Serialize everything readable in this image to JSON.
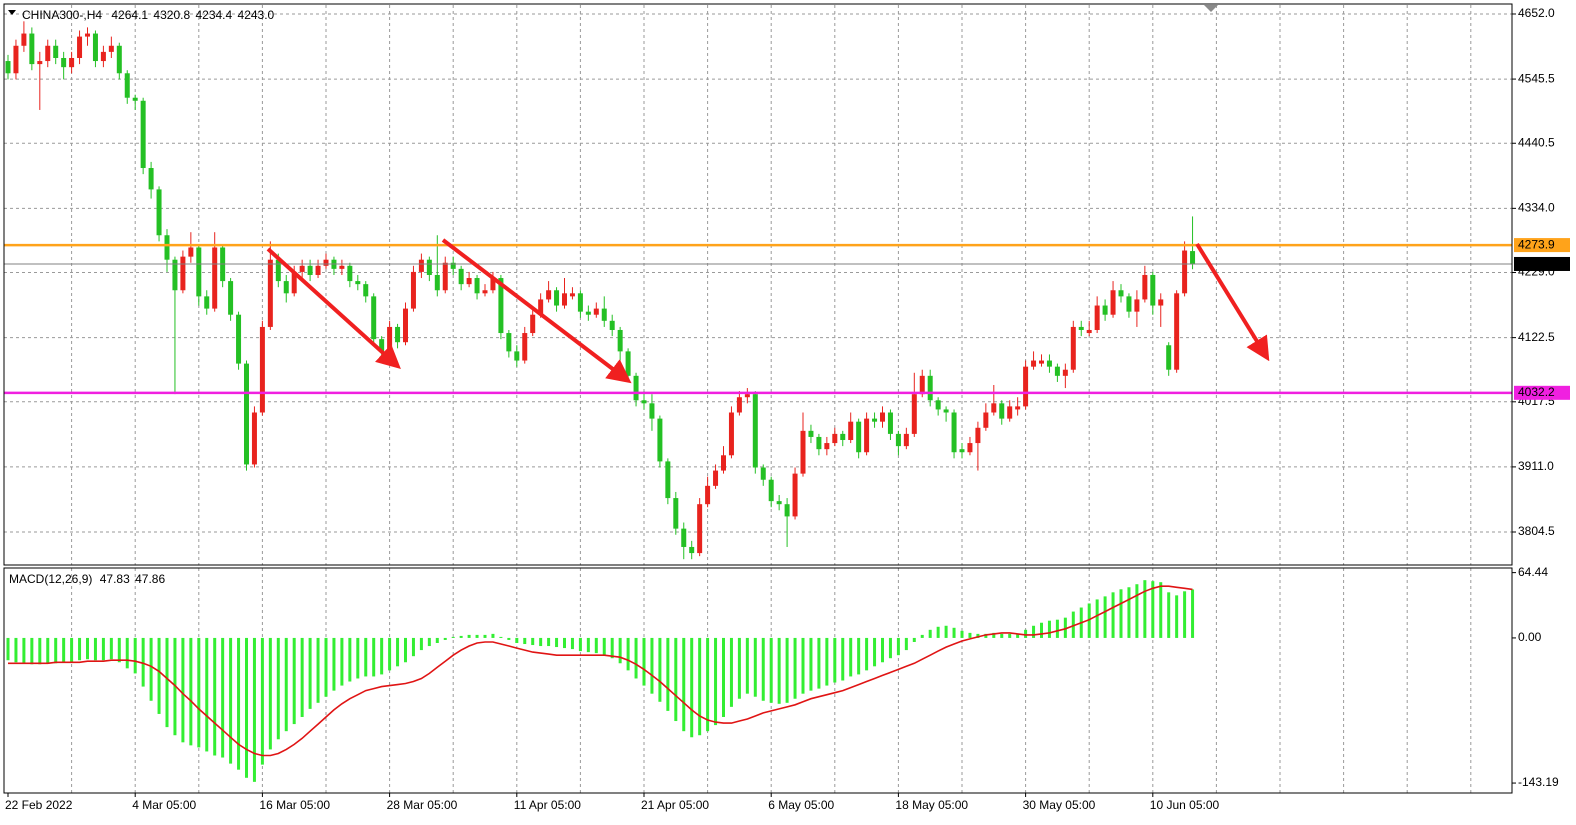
{
  "chart_data": [
    {
      "type": "candlestick",
      "title": "CHINA300-,H4",
      "ohlc_labels": [
        "4264.1",
        "4320.8",
        "4234.4",
        "4243.0"
      ],
      "categories": [
        "22 Feb 2022",
        null,
        null,
        null,
        null,
        null,
        null,
        null,
        null,
        null,
        null,
        null,
        null,
        null,
        null,
        null,
        "4 Mar 05:00",
        null,
        null,
        null,
        null,
        null,
        null,
        null,
        null,
        null,
        null,
        null,
        null,
        null,
        null,
        null,
        "16 Mar 05:00",
        null,
        null,
        null,
        null,
        null,
        null,
        null,
        null,
        null,
        null,
        null,
        null,
        null,
        null,
        null,
        "28 Mar 05:00",
        null,
        null,
        null,
        null,
        null,
        null,
        null,
        null,
        null,
        null,
        null,
        null,
        null,
        null,
        null,
        "11 Apr 05:00",
        null,
        null,
        null,
        null,
        null,
        null,
        null,
        null,
        null,
        null,
        null,
        null,
        null,
        null,
        null,
        "21 Apr 05:00",
        null,
        null,
        null,
        null,
        null,
        null,
        null,
        null,
        null,
        null,
        null,
        null,
        null,
        null,
        null,
        "6 May 05:00",
        null,
        null,
        null,
        null,
        null,
        null,
        null,
        null,
        null,
        null,
        null,
        null,
        null,
        null,
        null,
        "18 May 05:00",
        null,
        null,
        null,
        null,
        null,
        null,
        null,
        null,
        null,
        null,
        null,
        null,
        null,
        null,
        null,
        "30 May 05:00",
        null,
        null,
        null,
        null,
        null,
        null,
        null,
        null,
        null,
        null,
        null,
        null,
        null,
        null,
        null,
        "10 Jun 05:00",
        null,
        null,
        null,
        null,
        null
      ],
      "open": [
        4575,
        4555,
        4600,
        4620,
        4570,
        4575,
        4600,
        4580,
        4565,
        4580,
        4615,
        4620,
        4575,
        4590,
        4600,
        4555,
        4515,
        4510,
        4400,
        4365,
        4290,
        4250,
        4200,
        4255,
        4270,
        4190,
        4170,
        4270,
        4215,
        4160,
        4080,
        3915,
        4000,
        4140,
        4250,
        4215,
        4195,
        4230,
        4240,
        4225,
        4240,
        4250,
        4235,
        4240,
        4215,
        4210,
        4190,
        4120,
        4100,
        4140,
        4115,
        4170,
        4230,
        4250,
        4225,
        4200,
        4245,
        4235,
        4210,
        4220,
        4195,
        4200,
        4220,
        4130,
        4100,
        4085,
        4130,
        4160,
        4185,
        4200,
        4175,
        4190,
        4195,
        4165,
        4160,
        4170,
        4150,
        4135,
        4100,
        4060,
        4020,
        4015,
        3990,
        3920,
        3860,
        3810,
        3780,
        3770,
        3850,
        3880,
        3905,
        3930,
        4000,
        4025,
        4030,
        3910,
        3890,
        3855,
        3850,
        3830,
        3900,
        3970,
        3960,
        3940,
        3950,
        3965,
        3955,
        3985,
        3935,
        3990,
        3985,
        4000,
        3965,
        3945,
        3965,
        4030,
        4060,
        4020,
        4005,
        4000,
        3940,
        3935,
        3950,
        3975,
        4000,
        4015,
        3990,
        4005,
        4010,
        4075,
        4080,
        4085,
        4075,
        4060,
        4070,
        4140,
        4130,
        4135,
        4175,
        4160,
        4200,
        4190,
        4165,
        4185,
        4225,
        4175,
        4110,
        4070,
        4195,
        4264.1
      ],
      "high": [
        4585,
        4610,
        4640,
        4630,
        4590,
        4610,
        4610,
        4590,
        4590,
        4625,
        4630,
        4625,
        4600,
        4615,
        4605,
        4560,
        4520,
        4515,
        4410,
        4370,
        4300,
        4255,
        4265,
        4295,
        4275,
        4200,
        4295,
        4275,
        4220,
        4165,
        4085,
        4010,
        4150,
        4280,
        4260,
        4225,
        4240,
        4250,
        4250,
        4250,
        4260,
        4255,
        4250,
        4245,
        4225,
        4215,
        4195,
        4125,
        4150,
        4145,
        4180,
        4240,
        4260,
        4255,
        4290,
        4255,
        4255,
        4240,
        4230,
        4225,
        4210,
        4230,
        4225,
        4135,
        4110,
        4140,
        4170,
        4195,
        4215,
        4205,
        4220,
        4205,
        4200,
        4175,
        4180,
        4190,
        4160,
        4140,
        4105,
        4065,
        4035,
        4030,
        3995,
        3925,
        3870,
        3820,
        3790,
        3860,
        3895,
        3915,
        3945,
        4010,
        4035,
        4040,
        4035,
        3915,
        3895,
        3865,
        3860,
        3910,
        4000,
        3980,
        3965,
        3960,
        3975,
        3970,
        4000,
        3990,
        4000,
        4000,
        4010,
        4005,
        3970,
        3975,
        4065,
        4070,
        4070,
        4025,
        4010,
        4005,
        3950,
        3960,
        3985,
        4015,
        4045,
        4020,
        4020,
        4025,
        4085,
        4100,
        4095,
        4095,
        4080,
        4080,
        4150,
        4150,
        4150,
        4190,
        4185,
        4215,
        4210,
        4195,
        4200,
        4240,
        4230,
        4195,
        4115,
        4200,
        4280,
        4320.8
      ],
      "low": [
        4545,
        4545,
        4590,
        4560,
        4495,
        4565,
        4570,
        4545,
        4555,
        4570,
        4600,
        4565,
        4565,
        4580,
        4545,
        4505,
        4495,
        4390,
        4350,
        4280,
        4230,
        4030,
        4195,
        4245,
        4175,
        4160,
        4165,
        4205,
        4150,
        4070,
        3905,
        3910,
        3995,
        4135,
        4205,
        4180,
        4190,
        4220,
        4215,
        4220,
        4235,
        4225,
        4225,
        4205,
        4200,
        4180,
        4110,
        4085,
        4095,
        4105,
        4110,
        4165,
        4220,
        4215,
        4190,
        4195,
        4225,
        4200,
        4205,
        4185,
        4190,
        4195,
        4120,
        4090,
        4075,
        4080,
        4125,
        4155,
        4180,
        4165,
        4170,
        4185,
        4155,
        4150,
        4155,
        4140,
        4125,
        4085,
        4050,
        4010,
        4005,
        3970,
        3910,
        3850,
        3800,
        3760,
        3760,
        3765,
        3845,
        3875,
        3900,
        3925,
        3995,
        4015,
        3900,
        3880,
        3845,
        3840,
        3780,
        3825,
        3895,
        3950,
        3930,
        3930,
        3945,
        3945,
        3950,
        3925,
        3930,
        3975,
        3975,
        3955,
        3930,
        3940,
        3960,
        4025,
        4010,
        3995,
        3985,
        3925,
        3925,
        3930,
        3905,
        3970,
        3995,
        3980,
        3985,
        3995,
        4005,
        4070,
        4075,
        4065,
        4050,
        4040,
        4065,
        4125,
        4125,
        4130,
        4150,
        4155,
        4180,
        4155,
        4140,
        4180,
        4160,
        4140,
        4060,
        4065,
        4190,
        4234.4
      ],
      "close": [
        4555,
        4600,
        4620,
        4570,
        4575,
        4600,
        4580,
        4565,
        4580,
        4615,
        4620,
        4575,
        4590,
        4600,
        4555,
        4515,
        4510,
        4400,
        4365,
        4290,
        4250,
        4200,
        4255,
        4270,
        4190,
        4170,
        4270,
        4215,
        4160,
        4080,
        3915,
        4000,
        4140,
        4250,
        4215,
        4195,
        4230,
        4240,
        4225,
        4240,
        4250,
        4235,
        4240,
        4215,
        4210,
        4190,
        4120,
        4100,
        4140,
        4115,
        4170,
        4230,
        4250,
        4225,
        4200,
        4245,
        4235,
        4210,
        4220,
        4195,
        4200,
        4220,
        4130,
        4100,
        4085,
        4130,
        4160,
        4185,
        4200,
        4175,
        4195,
        4195,
        4165,
        4160,
        4170,
        4150,
        4135,
        4100,
        4060,
        4020,
        4015,
        3990,
        3920,
        3860,
        3810,
        3780,
        3770,
        3850,
        3880,
        3905,
        3930,
        4000,
        4025,
        4030,
        3910,
        3890,
        3855,
        3850,
        3830,
        3900,
        3970,
        3960,
        3940,
        3950,
        3965,
        3955,
        3985,
        3935,
        3990,
        3985,
        4000,
        3965,
        3945,
        3965,
        4030,
        4060,
        4020,
        4005,
        4000,
        3935,
        3935,
        3950,
        3975,
        4000,
        4015,
        3990,
        4010,
        4010,
        4075,
        4085,
        4085,
        4075,
        4060,
        4070,
        4140,
        4135,
        4135,
        4175,
        4160,
        4200,
        4190,
        4165,
        4185,
        4225,
        4175,
        4185,
        4070,
        4195,
        4265,
        4243.0
      ],
      "up_color": "#e8231e",
      "down_color": "#24c024",
      "last_price_color": "#808080",
      "levels": [
        {
          "value": 4273.9,
          "color": "#ffa31a"
        },
        {
          "value": 4032.2,
          "color": "#f020e0"
        }
      ],
      "ylim": [
        3750.5,
        4666.7
      ],
      "yticks": [
        {
          "value": 4652,
          "label": "4652.0"
        },
        {
          "value": 4545.5,
          "label": "4545.5"
        },
        {
          "value": 4440.5,
          "label": "4440.5"
        },
        {
          "value": 4334,
          "label": "4334.0"
        },
        {
          "value": 4229,
          "label": "4229.0"
        },
        {
          "value": 4122.5,
          "label": "4122.5"
        },
        {
          "value": 4017.5,
          "label": "4017.5"
        },
        {
          "value": 3911,
          "label": "3911.0"
        },
        {
          "value": 3804.5,
          "label": "3804.5"
        }
      ],
      "grid": true
    },
    {
      "type": "macd",
      "title": "MACD(12,26,9)",
      "series": [
        {
          "color": "#33ee33",
          "style": "histogram",
          "values": [
            -22,
            -24,
            -25,
            -26,
            -26,
            -25,
            -25,
            -24,
            -24,
            -22,
            -21,
            -22,
            -22,
            -21,
            -24,
            -30,
            -35,
            -48,
            -62,
            -75,
            -88,
            -96,
            -103,
            -106,
            -108,
            -112,
            -116,
            -118,
            -124,
            -130,
            -138,
            -142,
            -125,
            -110,
            -100,
            -92,
            -85,
            -78,
            -70,
            -64,
            -58,
            -52,
            -47,
            -43,
            -40,
            -38,
            -38,
            -36,
            -32,
            -28,
            -24,
            -18,
            -12,
            -8,
            -5,
            -2,
            1,
            2,
            3,
            3,
            3,
            4,
            1,
            -2,
            -5,
            -6,
            -7,
            -8,
            -8,
            -9,
            -10,
            -11,
            -13,
            -14,
            -15,
            -17,
            -20,
            -25,
            -32,
            -40,
            -47,
            -55,
            -63,
            -72,
            -82,
            -92,
            -98,
            -96,
            -92,
            -86,
            -78,
            -68,
            -60,
            -55,
            -58,
            -62,
            -64,
            -65,
            -64,
            -60,
            -55,
            -52,
            -50,
            -47,
            -44,
            -42,
            -38,
            -36,
            -32,
            -28,
            -24,
            -20,
            -17,
            -12,
            -4,
            3,
            8,
            11,
            12,
            10,
            7,
            5,
            4,
            4,
            5,
            4,
            4,
            4,
            8,
            12,
            15,
            17,
            18,
            20,
            26,
            30,
            34,
            38,
            41,
            45,
            48,
            50,
            53,
            57,
            56,
            55,
            45,
            42,
            46,
            47.83
          ]
        },
        {
          "color": "#e01414",
          "style": "line",
          "values": [
            -25,
            -25,
            -25,
            -25,
            -25,
            -25,
            -24,
            -24,
            -24,
            -24,
            -23,
            -23,
            -23,
            -22,
            -22,
            -22,
            -23,
            -25,
            -28,
            -33,
            -40,
            -47,
            -55,
            -62,
            -70,
            -77,
            -84,
            -91,
            -98,
            -105,
            -110,
            -114,
            -116,
            -116,
            -114,
            -110,
            -105,
            -99,
            -92,
            -85,
            -78,
            -71,
            -65,
            -60,
            -56,
            -52,
            -50,
            -48,
            -47,
            -46,
            -45,
            -43,
            -40,
            -35,
            -29,
            -23,
            -17,
            -12,
            -8,
            -5,
            -4,
            -4,
            -6,
            -8,
            -10,
            -12,
            -14,
            -15,
            -16,
            -17,
            -17,
            -17,
            -17,
            -17,
            -17,
            -17,
            -18,
            -19,
            -22,
            -26,
            -31,
            -37,
            -43,
            -50,
            -57,
            -64,
            -71,
            -77,
            -81,
            -83,
            -84,
            -84,
            -82,
            -80,
            -77,
            -74,
            -72,
            -70,
            -68,
            -66,
            -63,
            -60,
            -58,
            -56,
            -54,
            -52,
            -49,
            -46,
            -43,
            -40,
            -37,
            -34,
            -31,
            -28,
            -25,
            -21,
            -17,
            -13,
            -9,
            -6,
            -3,
            -1,
            1,
            3,
            4,
            5,
            5,
            4,
            3,
            3,
            4,
            5,
            7,
            9,
            12,
            15,
            18,
            22,
            26,
            30,
            34,
            38,
            42,
            46,
            49,
            51,
            51,
            50,
            49,
            47.86
          ]
        }
      ],
      "ylim": [
        -153,
        69
      ],
      "yticks": [
        64.44,
        {
          "value": 0,
          "label": "0.00"
        },
        -143.19
      ],
      "grid": true
    }
  ]
}
